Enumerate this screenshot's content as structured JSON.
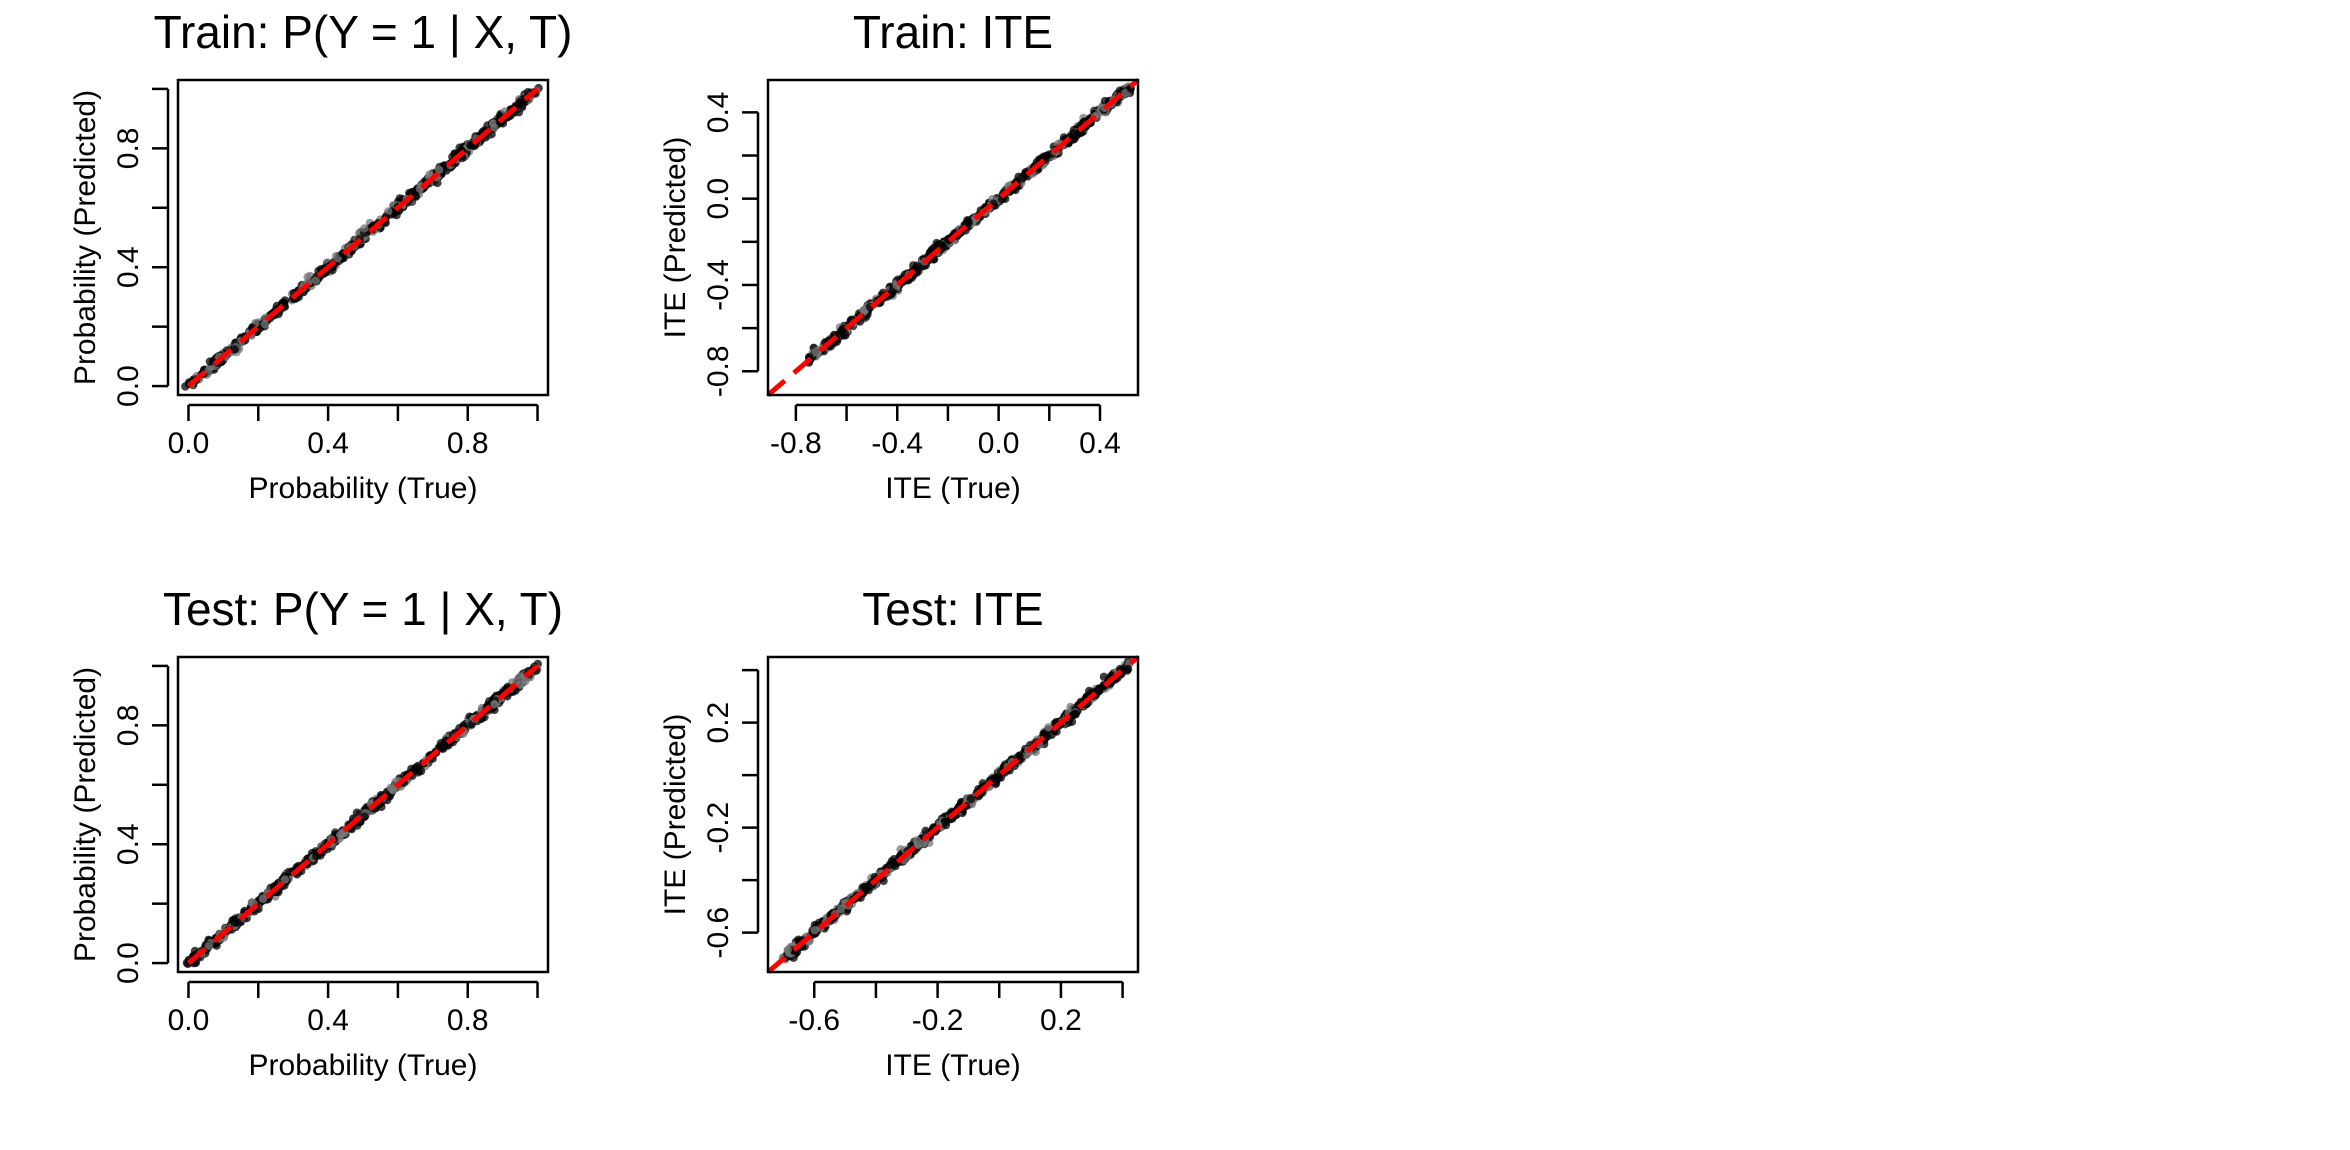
{
  "chart_data": [
    {
      "type": "scatter",
      "title": "Train:  P(Y = 1 | X, T)",
      "xlabel": "Probability (True)",
      "ylabel": "Probability (Predicted)",
      "xlim": [
        -0.03,
        1.03
      ],
      "ylim": [
        -0.03,
        1.03
      ],
      "xticks": [
        0.0,
        0.2,
        0.4,
        0.6,
        0.8,
        1.0
      ],
      "xtick_labels": [
        "0.0",
        "",
        "0.4",
        "",
        "0.8",
        ""
      ],
      "yticks": [
        0.0,
        0.2,
        0.4,
        0.6,
        0.8,
        1.0
      ],
      "ytick_labels": [
        "0.0",
        "",
        "0.4",
        "",
        "0.8",
        ""
      ],
      "point_range": [
        0.0,
        1.0
      ],
      "point_color": "#000000",
      "reference_line": {
        "from": [
          0.0,
          0.0
        ],
        "to": [
          1.0,
          1.0
        ],
        "color": "#ff0000",
        "style": "dashed"
      },
      "grid": false
    },
    {
      "type": "scatter",
      "title": "Train: ITE",
      "xlabel": "ITE (True)",
      "ylabel": "ITE (Predicted)",
      "xlim": [
        -0.91,
        0.55
      ],
      "ylim": [
        -0.91,
        0.55
      ],
      "xticks": [
        -0.8,
        -0.6,
        -0.4,
        -0.2,
        0.0,
        0.2,
        0.4
      ],
      "xtick_labels": [
        "-0.8",
        "",
        "-0.4",
        "",
        "0.0",
        "",
        "0.4"
      ],
      "yticks": [
        -0.8,
        -0.6,
        -0.4,
        -0.2,
        0.0,
        0.2,
        0.4
      ],
      "ytick_labels": [
        "-0.8",
        "-0.4",
        "0.0",
        "0.4"
      ],
      "ytick_label_values": [
        -0.8,
        -0.4,
        0.0,
        0.4
      ],
      "point_range": [
        -0.75,
        0.52
      ],
      "point_color": "#000000",
      "reference_line": {
        "from": [
          -0.91,
          -0.91
        ],
        "to": [
          0.55,
          0.55
        ],
        "color": "#ff0000",
        "style": "dashed"
      },
      "grid": false
    },
    {
      "type": "scatter",
      "title": "Test:  P(Y = 1 | X, T)",
      "xlabel": "Probability (True)",
      "ylabel": "Probability (Predicted)",
      "xlim": [
        -0.03,
        1.03
      ],
      "ylim": [
        -0.03,
        1.03
      ],
      "xticks": [
        0.0,
        0.2,
        0.4,
        0.6,
        0.8,
        1.0
      ],
      "xtick_labels": [
        "0.0",
        "",
        "0.4",
        "",
        "0.8",
        ""
      ],
      "yticks": [
        0.0,
        0.2,
        0.4,
        0.6,
        0.8,
        1.0
      ],
      "ytick_labels": [
        "0.0",
        "",
        "0.4",
        "",
        "0.8",
        ""
      ],
      "point_range": [
        0.0,
        1.0
      ],
      "point_color": "#000000",
      "reference_line": {
        "from": [
          0.0,
          0.0
        ],
        "to": [
          1.0,
          1.0
        ],
        "color": "#ff0000",
        "style": "dashed"
      },
      "grid": false
    },
    {
      "type": "scatter",
      "title": "Test: ITE",
      "xlabel": "ITE (True)",
      "ylabel": "ITE (Predicted)",
      "xlim": [
        -0.75,
        0.45
      ],
      "ylim": [
        -0.75,
        0.45
      ],
      "xticks": [
        -0.6,
        -0.4,
        -0.2,
        0.0,
        0.2,
        0.4
      ],
      "xtick_labels": [
        "-0.6",
        "",
        "-0.2",
        "",
        "0.2",
        ""
      ],
      "yticks": [
        -0.6,
        -0.4,
        -0.2,
        0.0,
        0.2,
        0.4
      ],
      "ytick_labels": [
        "-0.6",
        "-0.2",
        "0.2"
      ],
      "ytick_label_values": [
        -0.6,
        -0.2,
        0.2
      ],
      "point_range": [
        -0.7,
        0.42
      ],
      "point_color": "#000000",
      "reference_line": {
        "from": [
          -0.75,
          -0.75
        ],
        "to": [
          0.45,
          0.45
        ],
        "color": "#ff0000",
        "style": "dashed"
      },
      "grid": false
    }
  ]
}
